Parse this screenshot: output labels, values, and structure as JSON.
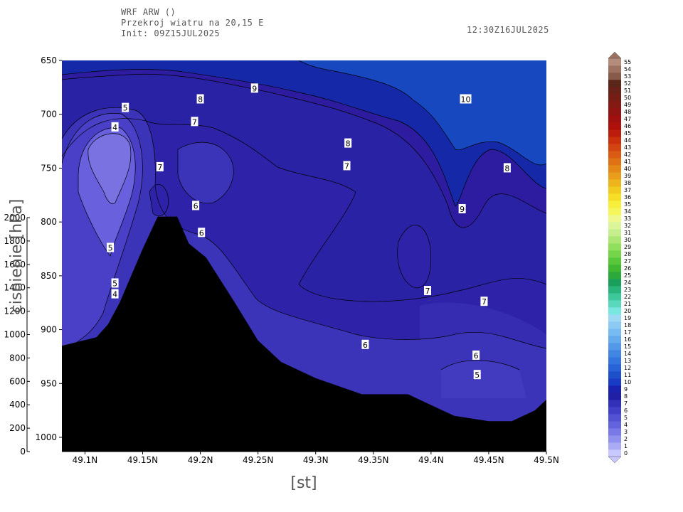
{
  "header": {
    "line1": "WRF ARW ()",
    "line2": "Przekroj wiatru na 20,15 E",
    "line3": "Init: 09Z15JUL2025",
    "valid": "12:30Z16JUL2025"
  },
  "chart_data": {
    "type": "contour",
    "xlabel": "[st]",
    "ylabel": "cisnienie [hPa]",
    "x_ticks": [
      "49.1N",
      "49.15N",
      "49.2N",
      "49.25N",
      "49.3N",
      "49.35N",
      "49.4N",
      "49.45N",
      "49.5N"
    ],
    "x_tick_values": [
      49.1,
      49.15,
      49.2,
      49.25,
      49.3,
      49.35,
      49.4,
      49.45,
      49.5
    ],
    "xlim": [
      49.08,
      49.5
    ],
    "y_ticks": [
      "650",
      "700",
      "750",
      "800",
      "850",
      "900",
      "950",
      "1000"
    ],
    "y_tick_values": [
      650,
      700,
      750,
      800,
      850,
      900,
      950,
      1000
    ],
    "ylim": [
      650,
      1010
    ],
    "y2_ticks": [
      "2000",
      "1800",
      "1600",
      "1400",
      "1200",
      "1000",
      "800",
      "600",
      "400",
      "200",
      "0"
    ],
    "y2_tick_values": [
      2000,
      1800,
      1600,
      1400,
      1200,
      1000,
      800,
      600,
      400,
      200,
      0
    ],
    "terrain": {
      "x": [
        49.08,
        49.11,
        49.12,
        49.13,
        49.15,
        49.163,
        49.18,
        49.19,
        49.205,
        49.23,
        49.25,
        49.27,
        49.3,
        49.34,
        49.36,
        49.38,
        49.4,
        49.42,
        49.45,
        49.47,
        49.49,
        49.5
      ],
      "p": [
        915,
        907,
        895,
        875,
        825,
        795,
        795,
        820,
        833,
        875,
        910,
        930,
        945,
        960,
        960,
        960,
        970,
        980,
        985,
        985,
        975,
        965
      ]
    },
    "contour_labels": [
      {
        "v": "9",
        "x": 49.247,
        "p": 676
      },
      {
        "v": "8",
        "x": 49.2,
        "p": 686
      },
      {
        "v": "5",
        "x": 49.135,
        "p": 694
      },
      {
        "v": "7",
        "x": 49.195,
        "p": 707
      },
      {
        "v": "4",
        "x": 49.126,
        "p": 712
      },
      {
        "v": "8",
        "x": 49.328,
        "p": 727
      },
      {
        "v": "10",
        "x": 49.43,
        "p": 686
      },
      {
        "v": "7",
        "x": 49.165,
        "p": 749
      },
      {
        "v": "7",
        "x": 49.327,
        "p": 748
      },
      {
        "v": "8",
        "x": 49.466,
        "p": 750
      },
      {
        "v": "6",
        "x": 49.196,
        "p": 785
      },
      {
        "v": "9",
        "x": 49.427,
        "p": 788
      },
      {
        "v": "6",
        "x": 49.201,
        "p": 810
      },
      {
        "v": "5",
        "x": 49.122,
        "p": 824
      },
      {
        "v": "5",
        "x": 49.126,
        "p": 857
      },
      {
        "v": "4",
        "x": 49.126,
        "p": 867
      },
      {
        "v": "7",
        "x": 49.397,
        "p": 864
      },
      {
        "v": "7",
        "x": 49.446,
        "p": 874
      },
      {
        "v": "6",
        "x": 49.343,
        "p": 914
      },
      {
        "v": "6",
        "x": 49.439,
        "p": 924
      },
      {
        "v": "5",
        "x": 49.44,
        "p": 942
      }
    ],
    "colorbar": {
      "labels": [
        "0",
        "1",
        "2",
        "3",
        "4",
        "5",
        "6",
        "7",
        "8",
        "9",
        "10",
        "11",
        "12",
        "13",
        "14",
        "15",
        "16",
        "17",
        "18",
        "19",
        "20",
        "21",
        "22",
        "23",
        "24",
        "25",
        "26",
        "27",
        "28",
        "29",
        "30",
        "31",
        "32",
        "33",
        "34",
        "35",
        "36",
        "37",
        "38",
        "39",
        "40",
        "41",
        "42",
        "43",
        "44",
        "45",
        "46",
        "47",
        "48",
        "49",
        "50",
        "51",
        "52",
        "53",
        "54",
        "55"
      ],
      "colors": [
        "#c8c8ff",
        "#aaaaf5",
        "#9090ee",
        "#7878e6",
        "#6363de",
        "#5252d4",
        "#4040c8",
        "#3030b8",
        "#2020a4",
        "#1c22b0",
        "#1a3cc4",
        "#1e50cc",
        "#2862d6",
        "#3474de",
        "#4286e4",
        "#5498ea",
        "#66aaee",
        "#78baf2",
        "#8ccaf4",
        "#9ed8f2",
        "#7ae6e0",
        "#5ad8bc",
        "#3cc89a",
        "#28b47a",
        "#1aa05c",
        "#2ca83c",
        "#40b832",
        "#58c83a",
        "#74d44a",
        "#92de5e",
        "#aee676",
        "#c6ee8e",
        "#dcf49c",
        "#eef88c",
        "#f6f65a",
        "#f8ee3c",
        "#f6de28",
        "#f2ca20",
        "#eeb41c",
        "#e89e1a",
        "#e48818",
        "#e07216",
        "#da5c14",
        "#d24412",
        "#c8300e",
        "#bc1c0c",
        "#ae100a",
        "#a0100e",
        "#921412",
        "#841a14",
        "#761e16",
        "#682218",
        "#5a261a",
        "#885a4a",
        "#9c7262",
        "#b48c7c"
      ]
    },
    "color_scale": {
      "bg": "#2a22a4",
      "v3": "#7a72e0",
      "v4": "#6860dc",
      "v5": "#4a40c8",
      "v6": "#3c34b8",
      "v7": "#2e22a8",
      "v8": "#2e1ca0",
      "v9": "#1428a8",
      "v10": "#1848c0",
      "terrain": "#000000"
    }
  }
}
